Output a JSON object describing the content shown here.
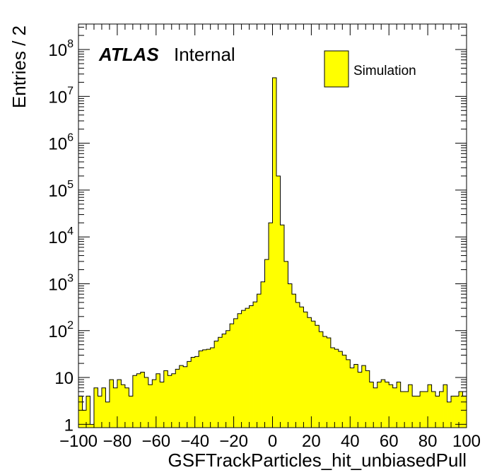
{
  "chart_data": {
    "type": "bar",
    "style": "histogram",
    "xlabel": "GSFTrackParticles_hit_unbiasedPull",
    "ylabel": "Entries / 2",
    "xlim": [
      -100,
      100
    ],
    "ylim": [
      0.85,
      350000000
    ],
    "y_scale": "log",
    "bin_width": 2,
    "x_ticks": [
      "−100",
      "−80",
      "−60",
      "−40",
      "−20",
      "0",
      "20",
      "40",
      "60",
      "80",
      "100"
    ],
    "y_ticks": [
      {
        "base": "1",
        "exp": ""
      },
      {
        "base": "10",
        "exp": ""
      },
      {
        "base": "10",
        "exp": "2"
      },
      {
        "base": "10",
        "exp": "3"
      },
      {
        "base": "10",
        "exp": "4"
      },
      {
        "base": "10",
        "exp": "5"
      },
      {
        "base": "10",
        "exp": "6"
      },
      {
        "base": "10",
        "exp": "7"
      },
      {
        "base": "10",
        "exp": "8"
      }
    ],
    "label_bold": "ATLAS",
    "label_normal": "Internal",
    "series": [
      {
        "name": "Simulation",
        "color": "#ffff00",
        "edge_color": "#000000",
        "bin_edges_start": -100,
        "values": [
          4,
          2,
          4,
          1,
          6,
          4,
          6,
          3,
          9,
          6,
          9,
          7,
          6,
          4,
          11,
          12,
          13,
          10,
          7,
          9,
          12,
          8,
          14,
          11,
          12,
          15,
          18,
          17,
          22,
          27,
          28,
          37,
          39,
          40,
          43,
          60,
          72,
          85,
          100,
          140,
          180,
          230,
          270,
          300,
          340,
          410,
          600,
          1100,
          3300,
          20000,
          25000000,
          200000,
          18000,
          3000,
          1000,
          600,
          400,
          320,
          250,
          190,
          160,
          130,
          95,
          75,
          70,
          43,
          40,
          36,
          30,
          24,
          16,
          19,
          13,
          18,
          14,
          8,
          6,
          8,
          9,
          8,
          7,
          6,
          8,
          5,
          5,
          7,
          4,
          4,
          5,
          5,
          7,
          5,
          4,
          5,
          7,
          3,
          4,
          4,
          5,
          4
        ]
      }
    ]
  }
}
